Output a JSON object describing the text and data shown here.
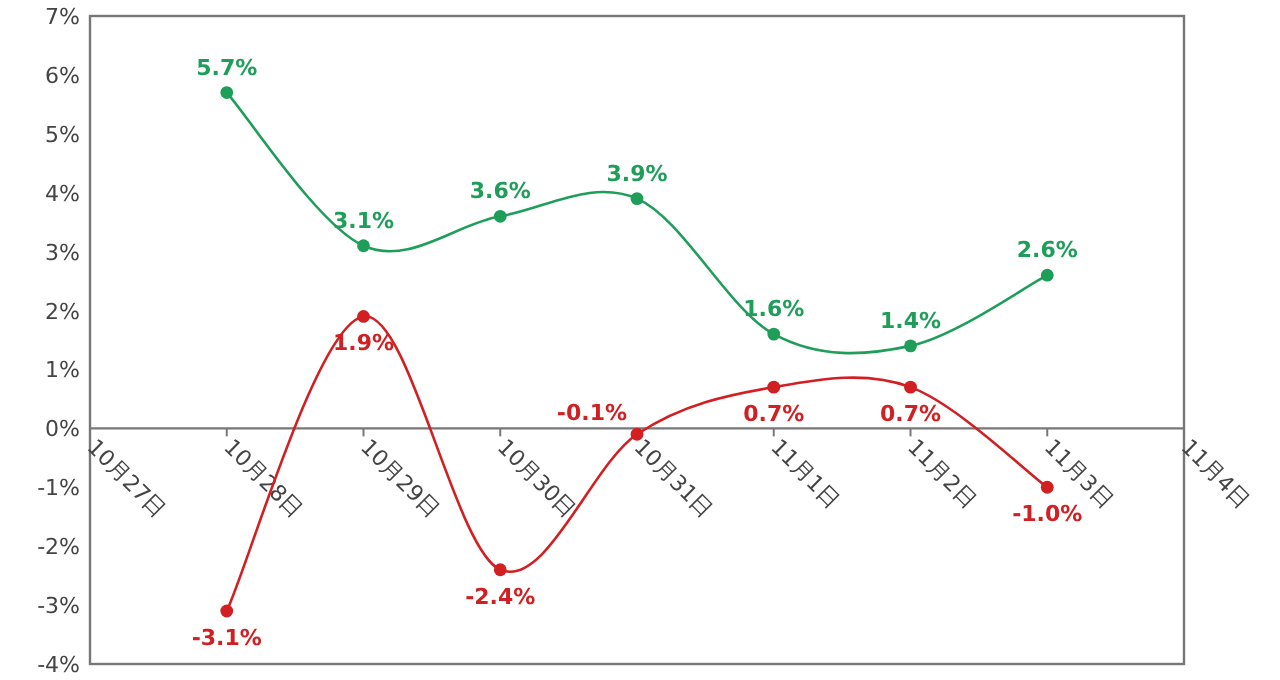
{
  "chart_data": {
    "type": "line",
    "categories": [
      "10月27日",
      "10月28日",
      "10月29日",
      "10月30日",
      "10月31日",
      "11月1日",
      "11月2日",
      "11月3日",
      "11月4日"
    ],
    "series": [
      {
        "color": "#1f9e5a",
        "values": [
          null,
          5.7,
          3.1,
          3.6,
          3.9,
          1.6,
          1.4,
          2.6,
          null
        ],
        "value_labels": [
          null,
          "5.7%",
          "3.1%",
          "3.6%",
          "3.9%",
          "1.6%",
          "1.4%",
          "2.6%",
          null
        ]
      },
      {
        "color": "#d11f22",
        "values": [
          null,
          -3.1,
          1.9,
          -2.4,
          -0.1,
          0.7,
          0.7,
          -1.0,
          null
        ],
        "value_labels": [
          null,
          "-3.1%",
          "1.9%",
          "-2.4%",
          "-0.1%",
          "0.7%",
          "0.7%",
          "-1.0%",
          null
        ]
      }
    ],
    "ylim": [
      -4,
      7
    ],
    "yticks": [
      {
        "value": -4,
        "label": "-4%"
      },
      {
        "value": -3,
        "label": "-3%"
      },
      {
        "value": -2,
        "label": "-2%"
      },
      {
        "value": -1,
        "label": "-1%"
      },
      {
        "value": 0,
        "label": "0%"
      },
      {
        "value": 1,
        "label": "1%"
      },
      {
        "value": 2,
        "label": "2%"
      },
      {
        "value": 3,
        "label": "3%"
      },
      {
        "value": 4,
        "label": "4%"
      },
      {
        "value": 5,
        "label": "5%"
      },
      {
        "value": 6,
        "label": "6%"
      },
      {
        "value": 7,
        "label": "7%"
      }
    ],
    "marker": "circle",
    "line_style": "solid",
    "grid": false
  }
}
